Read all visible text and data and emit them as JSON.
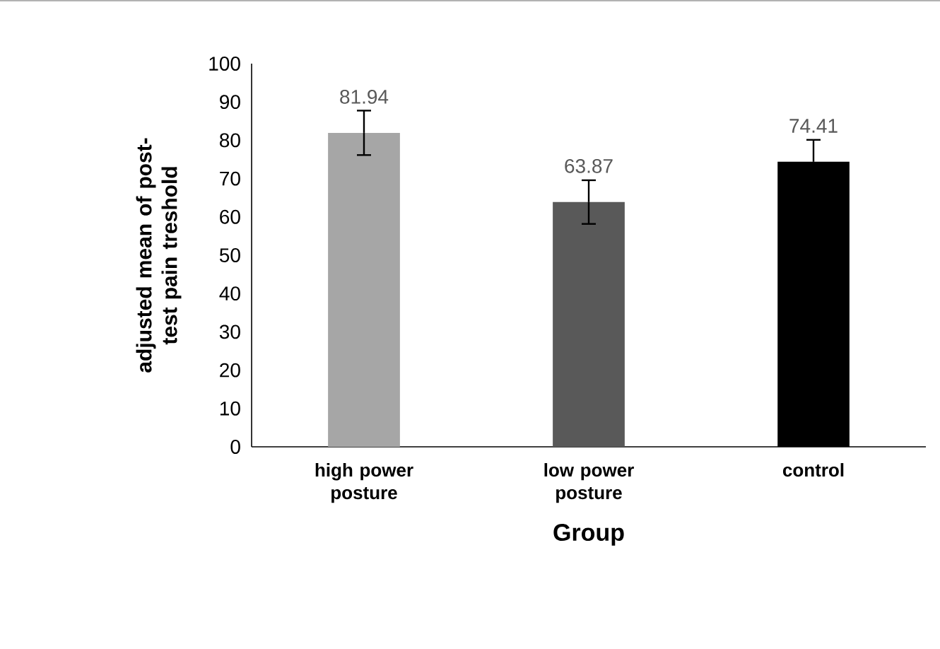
{
  "chart_data": {
    "type": "bar",
    "xlabel": "Group",
    "ylabel": "adjusted mean of post-test pain treshold",
    "categories": [
      "high power posture",
      "low power posture",
      "control"
    ],
    "values": [
      81.94,
      63.87,
      74.41
    ],
    "colors": [
      "#a6a6a6",
      "#595959",
      "#000000"
    ],
    "errors": [
      5.8,
      5.7,
      5.7
    ],
    "ylim": [
      0,
      100
    ],
    "yticks": [
      0,
      10,
      20,
      30,
      40,
      50,
      60,
      70,
      80,
      90,
      100
    ],
    "data_labels": true
  }
}
